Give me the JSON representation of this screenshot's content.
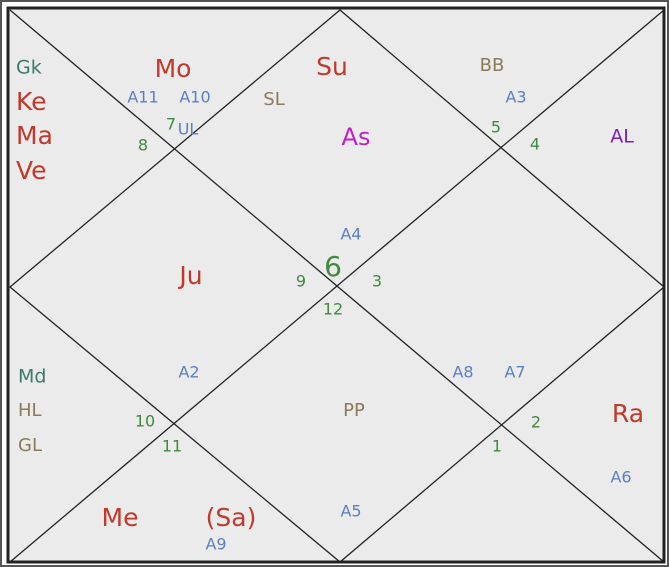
{
  "labels": [
    "Gk",
    "Ke",
    "Ma",
    "Ve",
    "Mo",
    "A11",
    "A10",
    "SL",
    "7",
    "UL",
    "8",
    "Su",
    "As",
    "BB",
    "A3",
    "5",
    "4",
    "AL",
    "A4",
    "Ju",
    "9",
    "6",
    "3",
    "12",
    "Md",
    "HL",
    "GL",
    "A2",
    "10",
    "11",
    "PP",
    "A8",
    "A7",
    "2",
    "1",
    "Ra",
    "A6",
    "Me",
    "(Sa)",
    "A5",
    "A9"
  ]
}
